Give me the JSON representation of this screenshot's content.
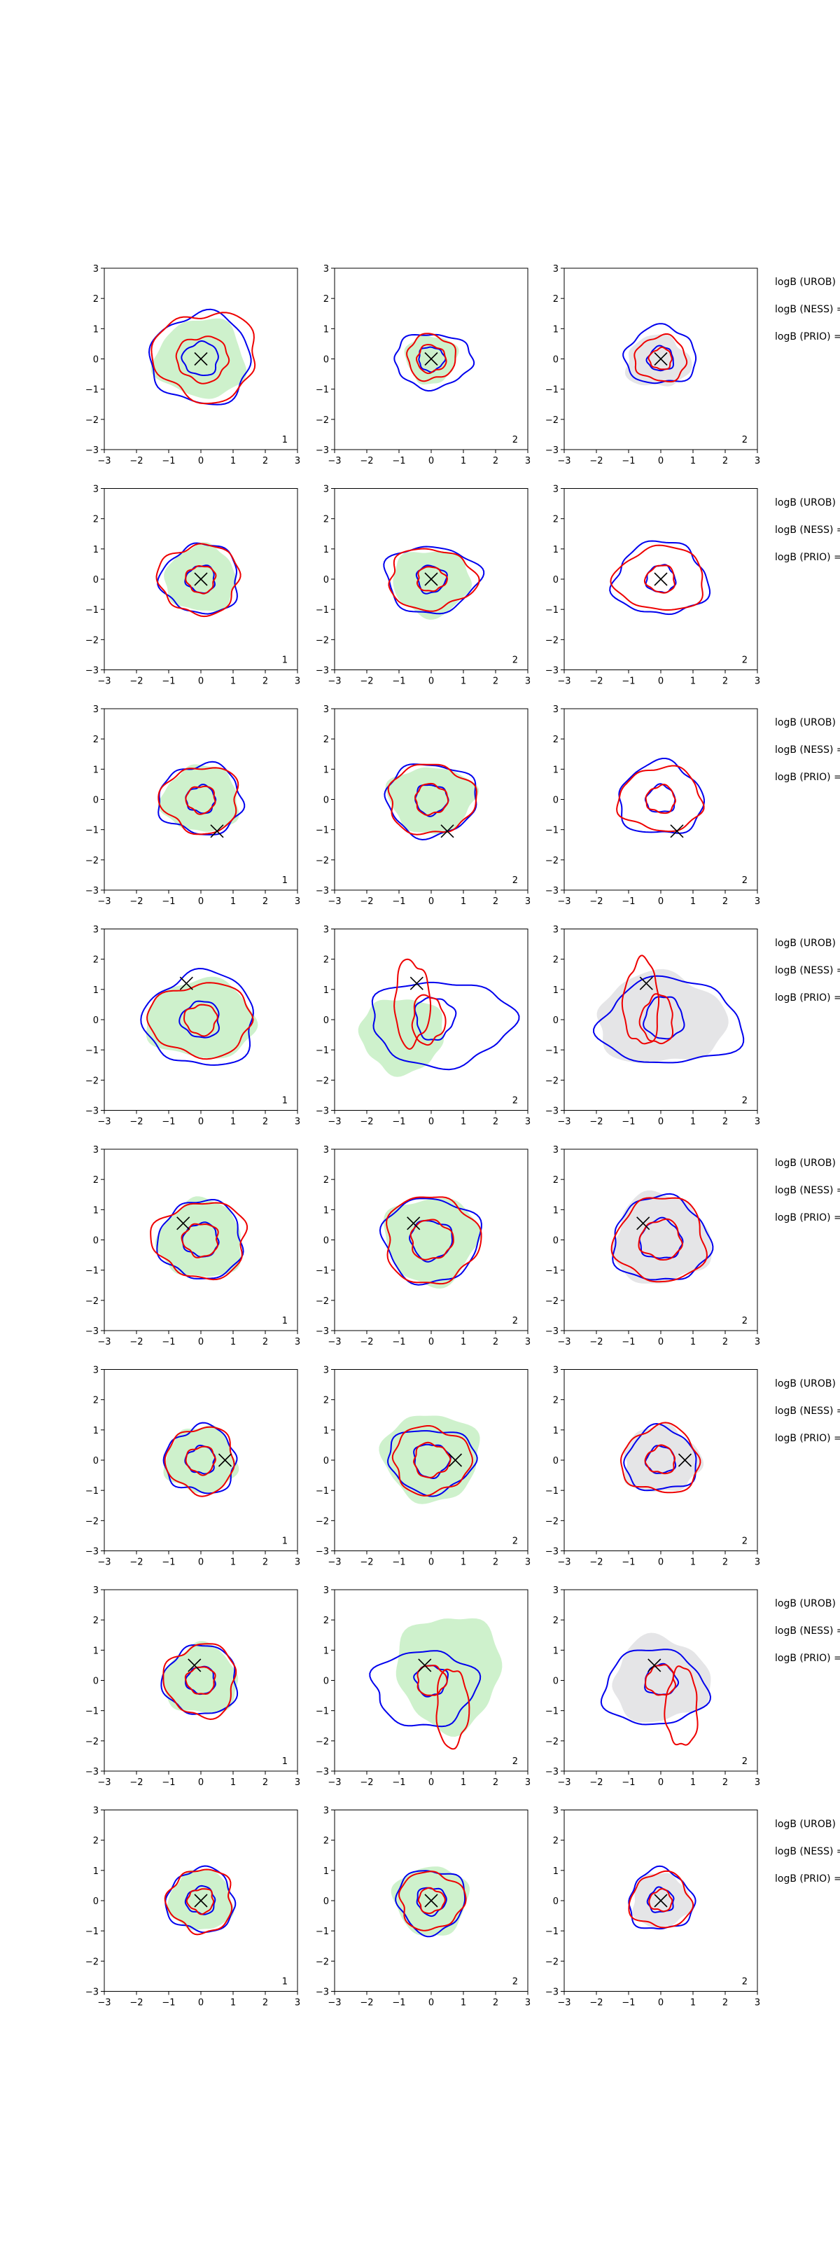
{
  "chart_data": {
    "type": "contour",
    "layout": {
      "rows": 8,
      "cols": 3
    },
    "axis": {
      "xlim": [
        -3,
        3
      ],
      "ylim": [
        -3,
        3
      ],
      "xticks": [
        -3,
        -2,
        -1,
        0,
        1,
        2,
        3
      ],
      "yticks": [
        -3,
        -2,
        -1,
        0,
        1,
        2,
        3
      ],
      "tick_labels": [
        "−3",
        "−2",
        "−1",
        "0",
        "1",
        "2",
        "3"
      ]
    },
    "colors": {
      "blue_contour": "#0000ee",
      "red_contour": "#ee0000",
      "green_fill": "#c9f0c7",
      "gray_fill": "#e2e2e4",
      "marker": "#000000"
    },
    "panel_labels": [
      "1",
      "2",
      "2"
    ],
    "annotations": [
      "logB (UROB)",
      "logB (NESS) =",
      "logB (PRIO) ="
    ],
    "rows": [
      {
        "marker": [
          0.0,
          0.0
        ],
        "panels": [
          {
            "fill": "green",
            "green": [
              1.4,
              1.3,
              0,
              0
            ],
            "blue": [
              [
                1.55,
                1.5,
                0,
                0
              ],
              [
                0.55,
                0.55,
                0,
                0
              ]
            ],
            "red": [
              [
                1.6,
                1.45,
                0.15,
                0.1
              ],
              [
                0.8,
                0.75,
                0.05,
                0
              ]
            ]
          },
          {
            "fill": "green",
            "green": [
              0.8,
              0.8,
              0,
              0
            ],
            "blue": [
              [
                1.2,
                0.9,
                0.05,
                -0.05
              ],
              [
                0.4,
                0.4,
                0,
                0
              ]
            ],
            "red": [
              [
                0.75,
                0.75,
                0,
                0.05
              ],
              [
                0.45,
                0.45,
                0,
                0
              ]
            ]
          },
          {
            "fill": "gray",
            "green": [
              1.0,
              0.85,
              -0.1,
              -0.1
            ],
            "blue": [
              [
                1.1,
                0.95,
                0,
                0.1
              ],
              [
                0.4,
                0.4,
                0,
                0
              ]
            ],
            "red": [
              [
                0.8,
                0.75,
                0,
                0
              ],
              [
                0.35,
                0.35,
                0,
                0
              ]
            ]
          }
        ]
      },
      {
        "marker": [
          0.0,
          0.0
        ],
        "panels": [
          {
            "fill": "green",
            "green": [
              1.1,
              1.1,
              0,
              0
            ],
            "blue": [
              [
                1.2,
                1.15,
                0,
                0
              ],
              [
                0.45,
                0.45,
                0,
                0
              ]
            ],
            "red": [
              [
                1.25,
                1.15,
                -0.05,
                0
              ],
              [
                0.45,
                0.45,
                0,
                0
              ]
            ]
          },
          {
            "fill": "green",
            "green": [
              1.2,
              1.1,
              0,
              -0.1
            ],
            "blue": [
              [
                1.45,
                1.1,
                0,
                0
              ],
              [
                0.45,
                0.45,
                0,
                0
              ]
            ],
            "red": [
              [
                1.35,
                1.0,
                0,
                0
              ],
              [
                0.45,
                0.4,
                0,
                0
              ]
            ]
          },
          {
            "fill": "none",
            "green": [
              0,
              0,
              0,
              0
            ],
            "blue": [
              [
                1.45,
                1.2,
                0,
                0
              ],
              [
                0.45,
                0.45,
                0,
                0
              ]
            ],
            "red": [
              [
                1.4,
                1.05,
                0,
                0
              ],
              [
                0.45,
                0.45,
                0,
                0
              ]
            ]
          }
        ]
      },
      {
        "marker": [
          0.5,
          -1.05
        ],
        "panels": [
          {
            "fill": "green",
            "green": [
              1.2,
              1.1,
              0,
              0
            ],
            "blue": [
              [
                1.3,
                1.15,
                0,
                0
              ],
              [
                0.45,
                0.45,
                0,
                0
              ]
            ],
            "red": [
              [
                1.2,
                1.1,
                0,
                0
              ],
              [
                0.45,
                0.45,
                0,
                0
              ]
            ]
          },
          {
            "fill": "green",
            "green": [
              1.35,
              1.1,
              0,
              0
            ],
            "blue": [
              [
                1.4,
                1.2,
                0,
                0
              ],
              [
                0.5,
                0.5,
                0,
                0
              ]
            ],
            "red": [
              [
                1.35,
                1.15,
                0,
                0
              ],
              [
                0.5,
                0.5,
                0,
                0
              ]
            ]
          },
          {
            "fill": "none",
            "green": [
              0,
              0,
              0,
              0
            ],
            "blue": [
              [
                1.3,
                1.2,
                0,
                0
              ],
              [
                0.45,
                0.45,
                0,
                0
              ]
            ],
            "red": [
              [
                1.3,
                1.05,
                0,
                0
              ],
              [
                0.45,
                0.45,
                0,
                0
              ]
            ]
          }
        ]
      },
      {
        "marker": [
          -0.45,
          1.2
        ],
        "panels": [
          {
            "fill": "green",
            "green": [
              1.7,
              1.3,
              0,
              0
            ],
            "blue": [
              [
                1.7,
                1.55,
                0,
                0
              ],
              [
                0.6,
                0.6,
                0,
                0
              ]
            ],
            "red": [
              [
                1.6,
                1.2,
                0,
                0
              ],
              [
                0.5,
                0.5,
                0,
                0
              ]
            ]
          },
          {
            "fill": "green_shift",
            "green": [
              1.3,
              1.25,
              -0.9,
              -0.5
            ],
            "blue": [
              [
                2.2,
                1.4,
                0.3,
                -0.1
              ],
              [
                0.6,
                0.7,
                0.1,
                0.05
              ]
            ],
            "red": [
              [
                0.55,
                1.4,
                -0.6,
                0.55
              ],
              [
                0.5,
                0.8,
                -0.1,
                0
              ]
            ]
          },
          {
            "fill": "gray_big",
            "green": [
              2.0,
              1.5,
              0,
              0
            ],
            "blue": [
              [
                2.2,
                1.4,
                0.3,
                -0.1
              ],
              [
                0.6,
                0.7,
                0.1,
                0.05
              ]
            ],
            "red": [
              [
                0.55,
                1.4,
                -0.6,
                0.55
              ],
              [
                0.5,
                0.8,
                -0.1,
                0
              ]
            ]
          }
        ]
      },
      {
        "marker": [
          -0.55,
          0.55
        ],
        "panels": [
          {
            "fill": "green",
            "green": [
              1.3,
              1.3,
              0,
              0
            ],
            "blue": [
              [
                1.3,
                1.3,
                0,
                0
              ],
              [
                0.55,
                0.55,
                0,
                0
              ]
            ],
            "red": [
              [
                1.45,
                1.25,
                0,
                0
              ],
              [
                0.55,
                0.55,
                0,
                0
              ]
            ]
          },
          {
            "fill": "green",
            "green": [
              1.45,
              1.45,
              0,
              0
            ],
            "blue": [
              [
                1.5,
                1.4,
                0,
                0
              ],
              [
                0.65,
                0.65,
                0,
                0
              ]
            ],
            "red": [
              [
                1.45,
                1.45,
                0,
                0
              ],
              [
                0.65,
                0.65,
                0,
                0
              ]
            ]
          },
          {
            "fill": "gray",
            "green": [
              1.5,
              1.5,
              0,
              0
            ],
            "blue": [
              [
                1.5,
                1.4,
                0,
                0
              ],
              [
                0.65,
                0.65,
                0,
                0
              ]
            ],
            "red": [
              [
                1.4,
                1.4,
                0,
                0
              ],
              [
                0.65,
                0.65,
                0,
                0
              ]
            ]
          }
        ]
      },
      {
        "marker": [
          0.75,
          0.0
        ],
        "panels": [
          {
            "fill": "green",
            "green": [
              1.1,
              1.1,
              0,
              0
            ],
            "blue": [
              [
                1.1,
                1.1,
                0,
                0
              ],
              [
                0.45,
                0.45,
                0,
                0
              ]
            ],
            "red": [
              [
                1.05,
                1.1,
                0,
                0
              ],
              [
                0.45,
                0.45,
                0,
                0
              ]
            ]
          },
          {
            "fill": "green",
            "green": [
              1.5,
              1.45,
              0,
              0.1
            ],
            "blue": [
              [
                1.35,
                1.05,
                0,
                0
              ],
              [
                0.55,
                0.55,
                0,
                0
              ]
            ],
            "red": [
              [
                1.2,
                1.1,
                0,
                0
              ],
              [
                0.55,
                0.55,
                0,
                0
              ]
            ]
          },
          {
            "fill": "gray",
            "green": [
              1.2,
              1.1,
              0,
              0
            ],
            "blue": [
              [
                1.1,
                1.05,
                0,
                0
              ],
              [
                0.45,
                0.45,
                0,
                0
              ]
            ],
            "red": [
              [
                1.2,
                1.1,
                0,
                0
              ],
              [
                0.45,
                0.45,
                0,
                0
              ]
            ]
          }
        ]
      },
      {
        "marker": [
          -0.2,
          0.5
        ],
        "panels": [
          {
            "fill": "green",
            "green": [
              1.15,
              1.15,
              0,
              0
            ],
            "blue": [
              [
                1.15,
                1.15,
                0,
                0
              ],
              [
                0.45,
                0.45,
                0,
                0
              ]
            ],
            "red": [
              [
                1.1,
                1.2,
                0,
                0
              ],
              [
                0.45,
                0.45,
                0,
                0
              ]
            ]
          },
          {
            "fill": "green_shift",
            "green": [
              1.6,
              1.9,
              0.55,
              0.3
            ],
            "blue": [
              [
                1.6,
                1.25,
                -0.2,
                -0.25
              ],
              [
                0.5,
                0.5,
                0,
                0
              ]
            ],
            "red": [
              [
                0.5,
                1.3,
                0.65,
                -0.9
              ],
              [
                0.45,
                0.5,
                0,
                0
              ]
            ]
          },
          {
            "fill": "gray",
            "green": [
              1.5,
              1.4,
              0,
              0
            ],
            "blue": [
              [
                1.6,
                1.25,
                -0.2,
                -0.25
              ],
              [
                0.5,
                0.5,
                0,
                0
              ]
            ],
            "red": [
              [
                0.5,
                1.3,
                0.65,
                -0.9
              ],
              [
                0.45,
                0.5,
                0,
                0
              ]
            ]
          }
        ]
      },
      {
        "marker": [
          0.0,
          0.0
        ],
        "panels": [
          {
            "fill": "green",
            "green": [
              1.0,
              1.0,
              0,
              0
            ],
            "blue": [
              [
                1.05,
                1.05,
                0,
                0
              ],
              [
                0.45,
                0.45,
                0,
                0
              ]
            ],
            "red": [
              [
                1.0,
                1.05,
                0,
                0
              ],
              [
                0.4,
                0.4,
                0,
                0
              ]
            ]
          },
          {
            "fill": "green",
            "green": [
              1.15,
              1.15,
              0,
              0
            ],
            "blue": [
              [
                1.05,
                1.05,
                0,
                0
              ],
              [
                0.45,
                0.45,
                0,
                0
              ]
            ],
            "red": [
              [
                1.0,
                0.95,
                0,
                0
              ],
              [
                0.4,
                0.4,
                0,
                0
              ]
            ]
          },
          {
            "fill": "gray",
            "green": [
              0.9,
              0.9,
              0,
              0
            ],
            "blue": [
              [
                1.0,
                1.0,
                0,
                0
              ],
              [
                0.4,
                0.4,
                0,
                0
              ]
            ],
            "red": [
              [
                0.95,
                0.9,
                0,
                0
              ],
              [
                0.35,
                0.35,
                0,
                0
              ]
            ]
          }
        ]
      }
    ]
  }
}
